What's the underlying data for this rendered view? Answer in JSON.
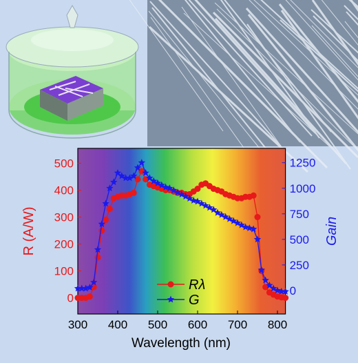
{
  "chart_data": {
    "type": "line",
    "x_label": "Wavelength (nm)",
    "y_label": "R (A/W)",
    "y2_label": "Gain",
    "x": [
      300,
      310,
      320,
      330,
      340,
      350,
      360,
      370,
      380,
      390,
      400,
      410,
      420,
      430,
      440,
      450,
      460,
      470,
      480,
      490,
      500,
      510,
      520,
      530,
      540,
      550,
      560,
      570,
      580,
      590,
      600,
      610,
      620,
      630,
      640,
      650,
      660,
      670,
      680,
      690,
      700,
      710,
      720,
      730,
      740,
      750,
      760,
      770,
      780,
      790,
      800,
      810,
      820
    ],
    "series": [
      {
        "name": "Rλ",
        "color": "#e8191a",
        "marker": "circle",
        "values": [
          0,
          0,
          0,
          5,
          40,
          150,
          250,
          290,
          330,
          370,
          375,
          380,
          380,
          385,
          390,
          440,
          470,
          440,
          420,
          415,
          410,
          405,
          400,
          400,
          395,
          390,
          390,
          385,
          385,
          395,
          405,
          420,
          425,
          415,
          405,
          400,
          395,
          385,
          380,
          375,
          370,
          370,
          375,
          375,
          380,
          300,
          100,
          40,
          20,
          12,
          5,
          2,
          0
        ]
      },
      {
        "name": "G",
        "color": "#1a1aee",
        "marker": "star",
        "axis": "y2",
        "values": [
          20,
          20,
          20,
          30,
          80,
          400,
          650,
          850,
          1000,
          1060,
          1150,
          1120,
          1100,
          1100,
          1120,
          1200,
          1250,
          1150,
          1100,
          1070,
          1050,
          1030,
          1010,
          1000,
          980,
          960,
          940,
          920,
          900,
          880,
          870,
          850,
          830,
          810,
          790,
          760,
          740,
          720,
          700,
          680,
          660,
          640,
          620,
          610,
          600,
          500,
          200,
          100,
          50,
          20,
          0,
          -10,
          -10
        ]
      }
    ],
    "xlim": [
      300,
      820
    ],
    "xticks": [
      300,
      400,
      500,
      600,
      700,
      800
    ],
    "ylim": [
      -60,
      555
    ],
    "yticks": [
      0,
      100,
      200,
      300,
      400,
      500
    ],
    "y2lim": [
      -230,
      1390
    ],
    "y2ticks": [
      0,
      250,
      500,
      750,
      1000,
      1250
    ]
  }
}
